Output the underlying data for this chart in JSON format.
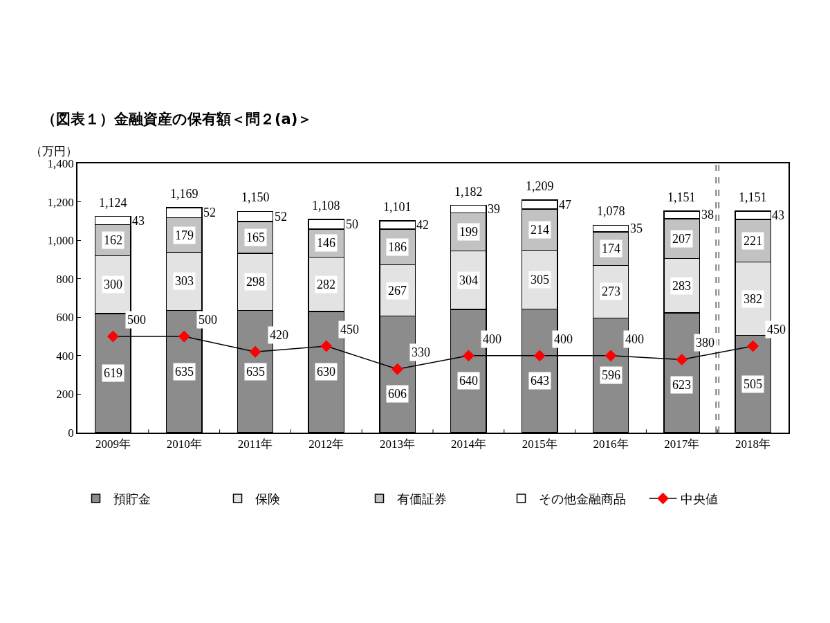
{
  "chart_data": {
    "type": "bar",
    "title": "（図表１）金融資産の保有額＜問２(a)＞",
    "ylabel": "（万円）",
    "categories": [
      "2009年",
      "2010年",
      "2011年",
      "2012年",
      "2013年",
      "2014年",
      "2015年",
      "2016年",
      "2017年",
      "2018年"
    ],
    "stacked": true,
    "series": [
      {
        "name": "預貯金",
        "color": "#8c8c8c",
        "values": [
          619,
          635,
          635,
          630,
          606,
          640,
          643,
          596,
          623,
          505
        ]
      },
      {
        "name": "保険",
        "color": "#e3e3e3",
        "values": [
          300,
          303,
          298,
          282,
          267,
          304,
          305,
          273,
          283,
          382
        ]
      },
      {
        "name": "有価証券",
        "color": "#c2c2c2",
        "values": [
          162,
          179,
          165,
          146,
          186,
          199,
          214,
          174,
          207,
          221
        ]
      },
      {
        "name": "その他金融商品",
        "color": "#ffffff",
        "values": [
          43,
          52,
          52,
          50,
          42,
          39,
          47,
          35,
          38,
          43
        ]
      },
      {
        "name": "中央値",
        "type": "line",
        "color": "#ff0000",
        "values": [
          500,
          500,
          420,
          450,
          330,
          400,
          400,
          400,
          380,
          450
        ]
      }
    ],
    "totals": [
      "1,124",
      "1,169",
      "1,150",
      "1,108",
      "1,101",
      "1,182",
      "1,209",
      "1,078",
      "1,151",
      "1,151"
    ],
    "ylim": [
      0,
      1400
    ],
    "yticks": [
      0,
      200,
      400,
      600,
      800,
      {
        "value": 1000,
        "label": "1,000"
      },
      {
        "value": 1200,
        "label": "1,200"
      },
      {
        "value": 1400,
        "label": "1,400"
      }
    ],
    "data_labels": true,
    "legend": "bottom",
    "marker": "diamond",
    "line_style": "solid"
  }
}
